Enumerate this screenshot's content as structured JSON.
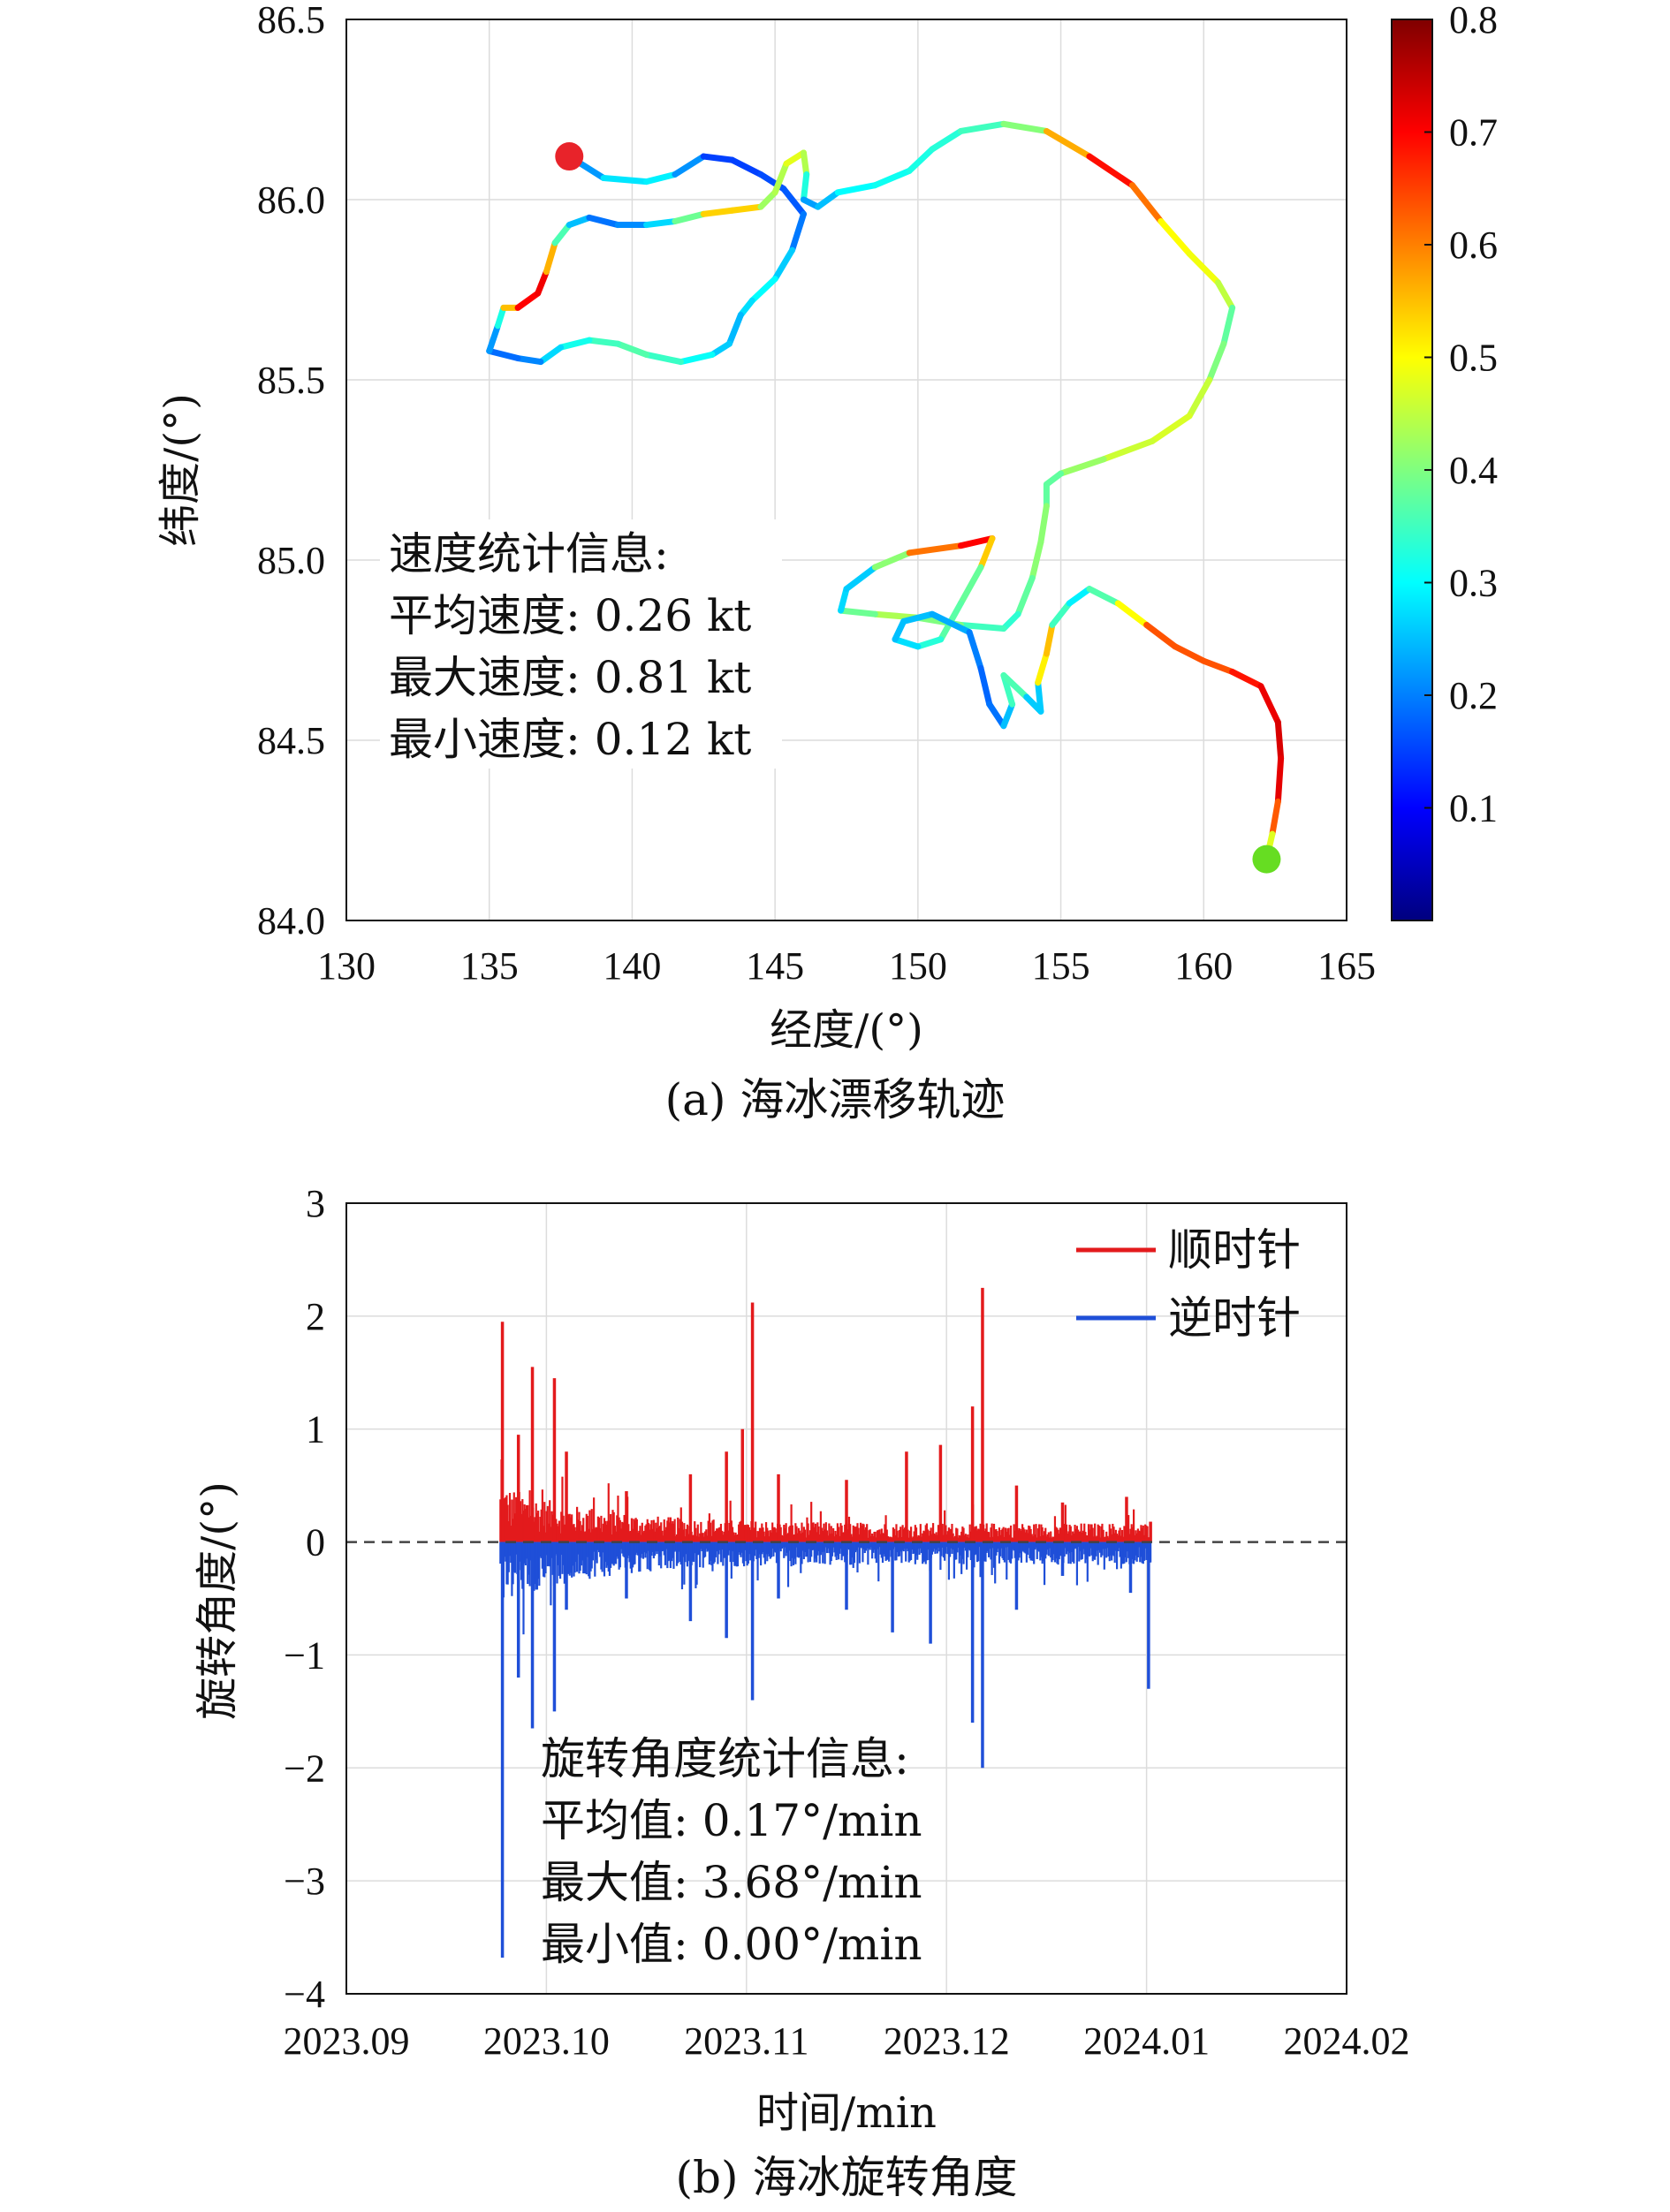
{
  "chart_data": [
    {
      "type": "scatter",
      "caption": "(a) 海冰漂移轨迹",
      "xlabel": "经度/(°)",
      "ylabel": "纬度/(°)",
      "xlim": [
        130,
        165
      ],
      "ylim": [
        84.0,
        86.5
      ],
      "xticks": [
        "130",
        "135",
        "140",
        "145",
        "150",
        "155",
        "160",
        "165"
      ],
      "yticks": [
        "84.0",
        "84.5",
        "85.0",
        "85.5",
        "86.0",
        "86.5"
      ],
      "grid": true,
      "colorbar": {
        "range": [
          0.0,
          0.8
        ],
        "ticks": [
          "0.1",
          "0.2",
          "0.3",
          "0.4",
          "0.5",
          "0.6",
          "0.7",
          "0.8"
        ],
        "colormap": "jet"
      },
      "start_point": {
        "x": 137.8,
        "y": 86.12,
        "color": "#e8232a"
      },
      "end_point": {
        "x": 162.2,
        "y": 84.17,
        "color": "#66dd22"
      },
      "stats": {
        "title": "速度统计信息:",
        "lines": [
          "平均速度: 0.26 kt",
          "最大速度: 0.81 kt",
          "最小速度: 0.12 kt"
        ]
      },
      "track": [
        [
          137.8,
          86.12,
          0.18
        ],
        [
          139.0,
          86.06,
          0.26
        ],
        [
          140.5,
          86.05,
          0.3
        ],
        [
          141.5,
          86.07,
          0.28
        ],
        [
          142.5,
          86.12,
          0.15
        ],
        [
          143.5,
          86.11,
          0.15
        ],
        [
          144.5,
          86.07,
          0.15
        ],
        [
          145.3,
          86.03,
          0.17
        ],
        [
          146.0,
          85.96,
          0.17
        ],
        [
          145.6,
          85.86,
          0.22
        ],
        [
          145.0,
          85.78,
          0.3
        ],
        [
          144.2,
          85.72,
          0.3
        ],
        [
          143.8,
          85.68,
          0.25
        ],
        [
          143.4,
          85.6,
          0.24
        ],
        [
          142.8,
          85.57,
          0.28
        ],
        [
          141.7,
          85.55,
          0.33
        ],
        [
          140.5,
          85.57,
          0.36
        ],
        [
          139.5,
          85.6,
          0.37
        ],
        [
          138.5,
          85.61,
          0.33
        ],
        [
          137.5,
          85.59,
          0.3
        ],
        [
          136.8,
          85.55,
          0.24
        ],
        [
          136.0,
          85.56,
          0.17
        ],
        [
          135.0,
          85.58,
          0.2
        ],
        [
          135.3,
          85.65,
          0.24
        ],
        [
          135.5,
          85.7,
          0.4
        ],
        [
          136.0,
          85.7,
          0.7
        ],
        [
          136.7,
          85.74,
          0.7
        ],
        [
          137.0,
          85.8,
          0.72
        ],
        [
          137.3,
          85.88,
          0.4
        ],
        [
          137.8,
          85.93,
          0.32
        ],
        [
          138.5,
          85.95,
          0.18
        ],
        [
          139.5,
          85.93,
          0.2
        ],
        [
          140.5,
          85.93,
          0.22
        ],
        [
          141.5,
          85.94,
          0.32
        ],
        [
          142.5,
          85.96,
          0.45
        ],
        [
          143.5,
          85.97,
          0.62
        ],
        [
          144.5,
          85.98,
          0.45
        ],
        [
          145.0,
          86.02,
          0.4
        ],
        [
          145.4,
          86.1,
          0.48
        ],
        [
          146.0,
          86.13,
          0.48
        ],
        [
          146.1,
          86.07,
          0.4
        ],
        [
          146.0,
          86.0,
          0.25
        ],
        [
          146.5,
          85.98,
          0.2
        ],
        [
          147.2,
          86.02,
          0.3
        ],
        [
          148.5,
          86.04,
          0.3
        ],
        [
          149.7,
          86.08,
          0.32
        ],
        [
          150.5,
          86.14,
          0.32
        ],
        [
          151.5,
          86.19,
          0.34
        ],
        [
          153.0,
          86.21,
          0.36
        ],
        [
          154.5,
          86.19,
          0.45
        ],
        [
          156.0,
          86.12,
          0.68
        ],
        [
          157.5,
          86.04,
          0.7
        ],
        [
          158.5,
          85.94,
          0.52
        ],
        [
          159.5,
          85.85,
          0.48
        ],
        [
          160.5,
          85.77,
          0.5
        ],
        [
          161.0,
          85.7,
          0.4
        ],
        [
          160.7,
          85.6,
          0.35
        ],
        [
          160.2,
          85.5,
          0.45
        ],
        [
          159.5,
          85.4,
          0.46
        ],
        [
          158.2,
          85.33,
          0.48
        ],
        [
          156.5,
          85.28,
          0.44
        ],
        [
          155.0,
          85.24,
          0.4
        ],
        [
          154.5,
          85.21,
          0.35
        ],
        [
          154.5,
          85.15,
          0.4
        ],
        [
          154.3,
          85.05,
          0.42
        ],
        [
          154.0,
          84.95,
          0.4
        ],
        [
          153.5,
          84.85,
          0.35
        ],
        [
          153.0,
          84.81,
          0.32
        ],
        [
          151.5,
          84.82,
          0.38
        ],
        [
          150.0,
          84.84,
          0.42
        ],
        [
          148.5,
          84.85,
          0.45
        ],
        [
          147.3,
          84.86,
          0.32
        ],
        [
          147.5,
          84.92,
          0.22
        ],
        [
          148.5,
          84.98,
          0.3
        ],
        [
          149.7,
          85.02,
          0.52
        ],
        [
          151.5,
          85.04,
          0.7
        ],
        [
          152.6,
          85.06,
          0.7
        ],
        [
          152.2,
          84.98,
          0.38
        ],
        [
          151.5,
          84.88,
          0.38
        ],
        [
          150.8,
          84.78,
          0.36
        ],
        [
          150.0,
          84.76,
          0.3
        ],
        [
          149.2,
          84.78,
          0.25
        ],
        [
          149.5,
          84.83,
          0.25
        ],
        [
          150.5,
          84.85,
          0.25
        ],
        [
          151.8,
          84.8,
          0.22
        ],
        [
          152.2,
          84.7,
          0.18
        ],
        [
          152.5,
          84.6,
          0.18
        ],
        [
          153.0,
          84.54,
          0.2
        ],
        [
          153.3,
          84.6,
          0.3
        ],
        [
          153.0,
          84.68,
          0.4
        ],
        [
          153.8,
          84.62,
          0.32
        ],
        [
          154.3,
          84.58,
          0.2
        ],
        [
          154.2,
          84.66,
          0.32
        ],
        [
          154.5,
          84.74,
          0.7
        ],
        [
          154.7,
          84.82,
          0.4
        ],
        [
          155.3,
          84.88,
          0.3
        ],
        [
          156.0,
          84.92,
          0.28
        ],
        [
          157.0,
          84.88,
          0.45
        ],
        [
          158.0,
          84.82,
          0.55
        ],
        [
          159.0,
          84.76,
          0.72
        ],
        [
          160.0,
          84.72,
          0.55
        ],
        [
          161.0,
          84.69,
          0.72
        ],
        [
          162.0,
          84.65,
          0.65
        ],
        [
          162.6,
          84.55,
          0.78
        ],
        [
          162.7,
          84.45,
          0.68
        ],
        [
          162.6,
          84.33,
          0.76
        ],
        [
          162.4,
          84.24,
          0.5
        ],
        [
          162.2,
          84.17,
          0.45
        ]
      ]
    },
    {
      "type": "bar",
      "caption": "(b) 海冰旋转角度",
      "xlabel": "时间/min",
      "ylabel": "旋转角度/(°)",
      "xlim": [
        "2023.09",
        "2024.02"
      ],
      "ylim": [
        -4,
        3
      ],
      "xticks": [
        "2023.09",
        "2023.10",
        "2023.11",
        "2023.12",
        "2024.01",
        "2024.02"
      ],
      "yticks": [
        "3",
        "2",
        "1",
        "0",
        "−1",
        "−2",
        "−3",
        "−4"
      ],
      "grid": true,
      "zero_line": "dashed",
      "legend": {
        "placement": "top-right",
        "entries": [
          {
            "name": "顺时针",
            "color": "#e31a1c"
          },
          {
            "name": "逆时针",
            "color": "#1f4fd8"
          }
        ]
      },
      "stats": {
        "title": "旋转角度统计信息:",
        "lines": [
          "平均值: 0.17°/min",
          "最大值: 3.68°/min",
          "最小值: 0.00°/min"
        ]
      },
      "x_month_fraction_range": [
        0.77,
        4.02
      ],
      "series": [
        {
          "name": "顺时针",
          "color": "#e31a1c",
          "peaks": [
            [
              0.78,
              1.95
            ],
            [
              0.93,
              1.55
            ],
            [
              1.04,
              1.45
            ],
            [
              0.86,
              0.95
            ],
            [
              1.1,
              0.8
            ],
            [
              1.4,
              0.45
            ],
            [
              1.72,
              0.6
            ],
            [
              1.9,
              0.8
            ],
            [
              1.98,
              1.0
            ],
            [
              2.03,
              2.12
            ],
            [
              2.16,
              0.6
            ],
            [
              2.5,
              0.55
            ],
            [
              2.8,
              0.8
            ],
            [
              2.97,
              0.86
            ],
            [
              3.13,
              1.2
            ],
            [
              3.18,
              2.25
            ],
            [
              3.35,
              0.5
            ],
            [
              3.58,
              0.35
            ],
            [
              3.9,
              0.4
            ],
            [
              4.02,
              0.18
            ]
          ]
        },
        {
          "name": "逆时针",
          "color": "#1f4fd8",
          "peaks": [
            [
              0.78,
              -3.68
            ],
            [
              0.93,
              -1.65
            ],
            [
              1.04,
              -1.5
            ],
            [
              0.86,
              -1.2
            ],
            [
              1.1,
              -0.6
            ],
            [
              1.4,
              -0.5
            ],
            [
              1.72,
              -0.7
            ],
            [
              1.9,
              -0.85
            ],
            [
              2.03,
              -1.4
            ],
            [
              2.16,
              -0.5
            ],
            [
              2.5,
              -0.6
            ],
            [
              2.73,
              -0.8
            ],
            [
              2.92,
              -0.9
            ],
            [
              3.13,
              -1.6
            ],
            [
              3.18,
              -2.0
            ],
            [
              3.35,
              -0.6
            ],
            [
              3.58,
              -0.3
            ],
            [
              3.92,
              -0.45
            ],
            [
              4.01,
              -1.3
            ]
          ]
        }
      ]
    }
  ]
}
